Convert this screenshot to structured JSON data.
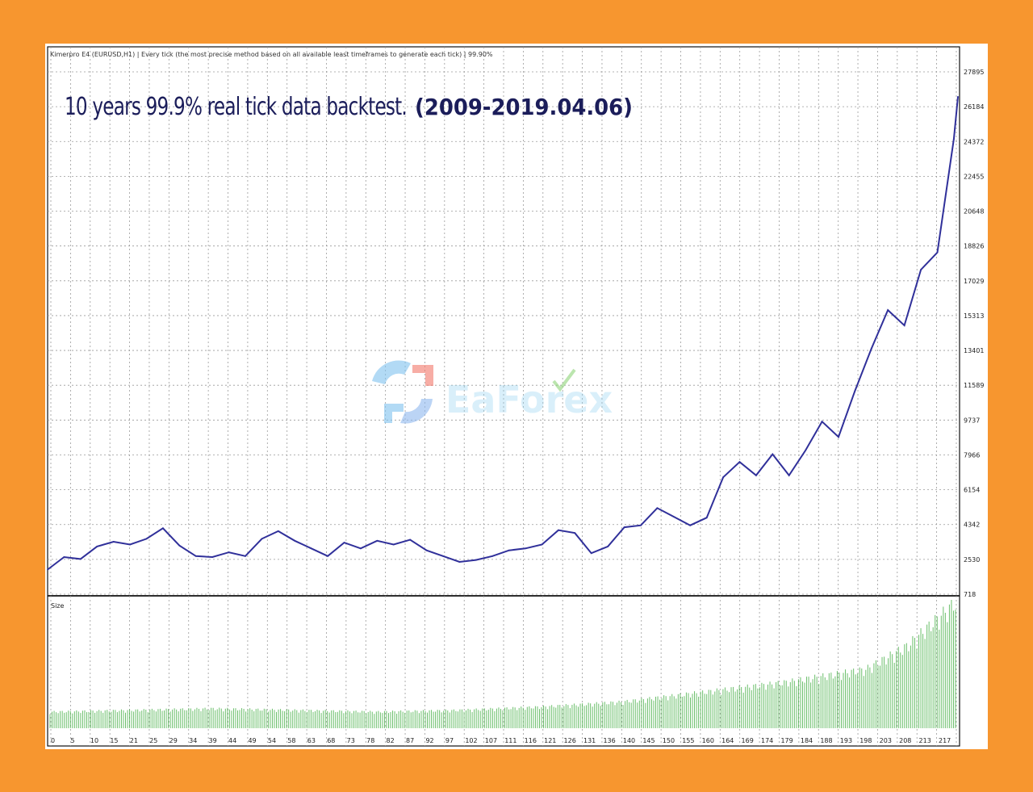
{
  "header_text": "Kimerpro E4 (EURUSD,H1) | Every tick (the most precise method based on all available least timeframes to generate each tick) | 99.90%",
  "annotation": {
    "main": "10 years 99.9% real tick data backtest.",
    "date": "(2009-2019.04.06)"
  },
  "watermark": {
    "text": "EaForex",
    "logo_icon": "eaforex-logo-icon"
  },
  "colors": {
    "page_border": "#f7962f",
    "balance_line": "#30309a",
    "size_bars": "#3aaa3a",
    "annotation": "#1b1d5a"
  },
  "chart_data": [
    {
      "type": "line",
      "series": [
        {
          "name": "",
          "color": "#30309a"
        }
      ],
      "y_tick_labels": [
        "27895",
        "26184",
        "24372",
        "22455",
        "20648",
        "18826",
        "17029",
        "15313",
        "13401",
        "11589",
        "9737",
        "7966",
        "6154",
        "4342",
        "2530",
        "718"
      ],
      "x": [
        1,
        5,
        9,
        13,
        17,
        21,
        25,
        29,
        33,
        37,
        41,
        45,
        49,
        53,
        57,
        61,
        65,
        69,
        73,
        77,
        81,
        85,
        89,
        93,
        97,
        101,
        105,
        109,
        113,
        117,
        121,
        125,
        129,
        133,
        137,
        141,
        145,
        149,
        153,
        157,
        161,
        165,
        169,
        173,
        177,
        181,
        185,
        189,
        193,
        197,
        201,
        205,
        209,
        213,
        217,
        221,
        222
      ],
      "y": [
        2000,
        2650,
        2550,
        3200,
        3450,
        3300,
        3600,
        4150,
        3250,
        2700,
        2650,
        2900,
        2700,
        3600,
        4000,
        3500,
        3100,
        2700,
        3400,
        3100,
        3500,
        3300,
        3550,
        3000,
        2700,
        2400,
        2500,
        2700,
        3000,
        3100,
        3300,
        4050,
        3900,
        2850,
        3200,
        4200,
        4300,
        5200,
        4750,
        4300,
        4700,
        6800,
        7600,
        6900,
        8000,
        6900,
        8200,
        9700,
        8900,
        11300,
        13500,
        15500,
        14700,
        17600,
        18500,
        24400,
        26600
      ],
      "x_tick_labels": [
        "0",
        "5",
        "10",
        "15",
        "21",
        "25",
        "29",
        "34",
        "39",
        "44",
        "49",
        "54",
        "58",
        "63",
        "68",
        "73",
        "78",
        "82",
        "87",
        "92",
        "97",
        "102",
        "107",
        "111",
        "116",
        "121",
        "126",
        "131",
        "136",
        "140",
        "145",
        "150",
        "155",
        "160",
        "164",
        "169",
        "174",
        "179",
        "184",
        "188",
        "193",
        "198",
        "203",
        "208",
        "213",
        "217"
      ]
    },
    {
      "type": "bar",
      "series": [
        {
          "name": "Size",
          "color": "#3aaa3a"
        }
      ],
      "x": [
        0,
        20,
        40,
        60,
        80,
        100,
        120,
        140,
        160,
        180,
        200,
        210,
        222
      ],
      "values": [
        1,
        1.1,
        1.2,
        1.1,
        1.0,
        1.1,
        1.3,
        1.6,
        2.2,
        2.8,
        3.6,
        5,
        7.7
      ]
    }
  ]
}
